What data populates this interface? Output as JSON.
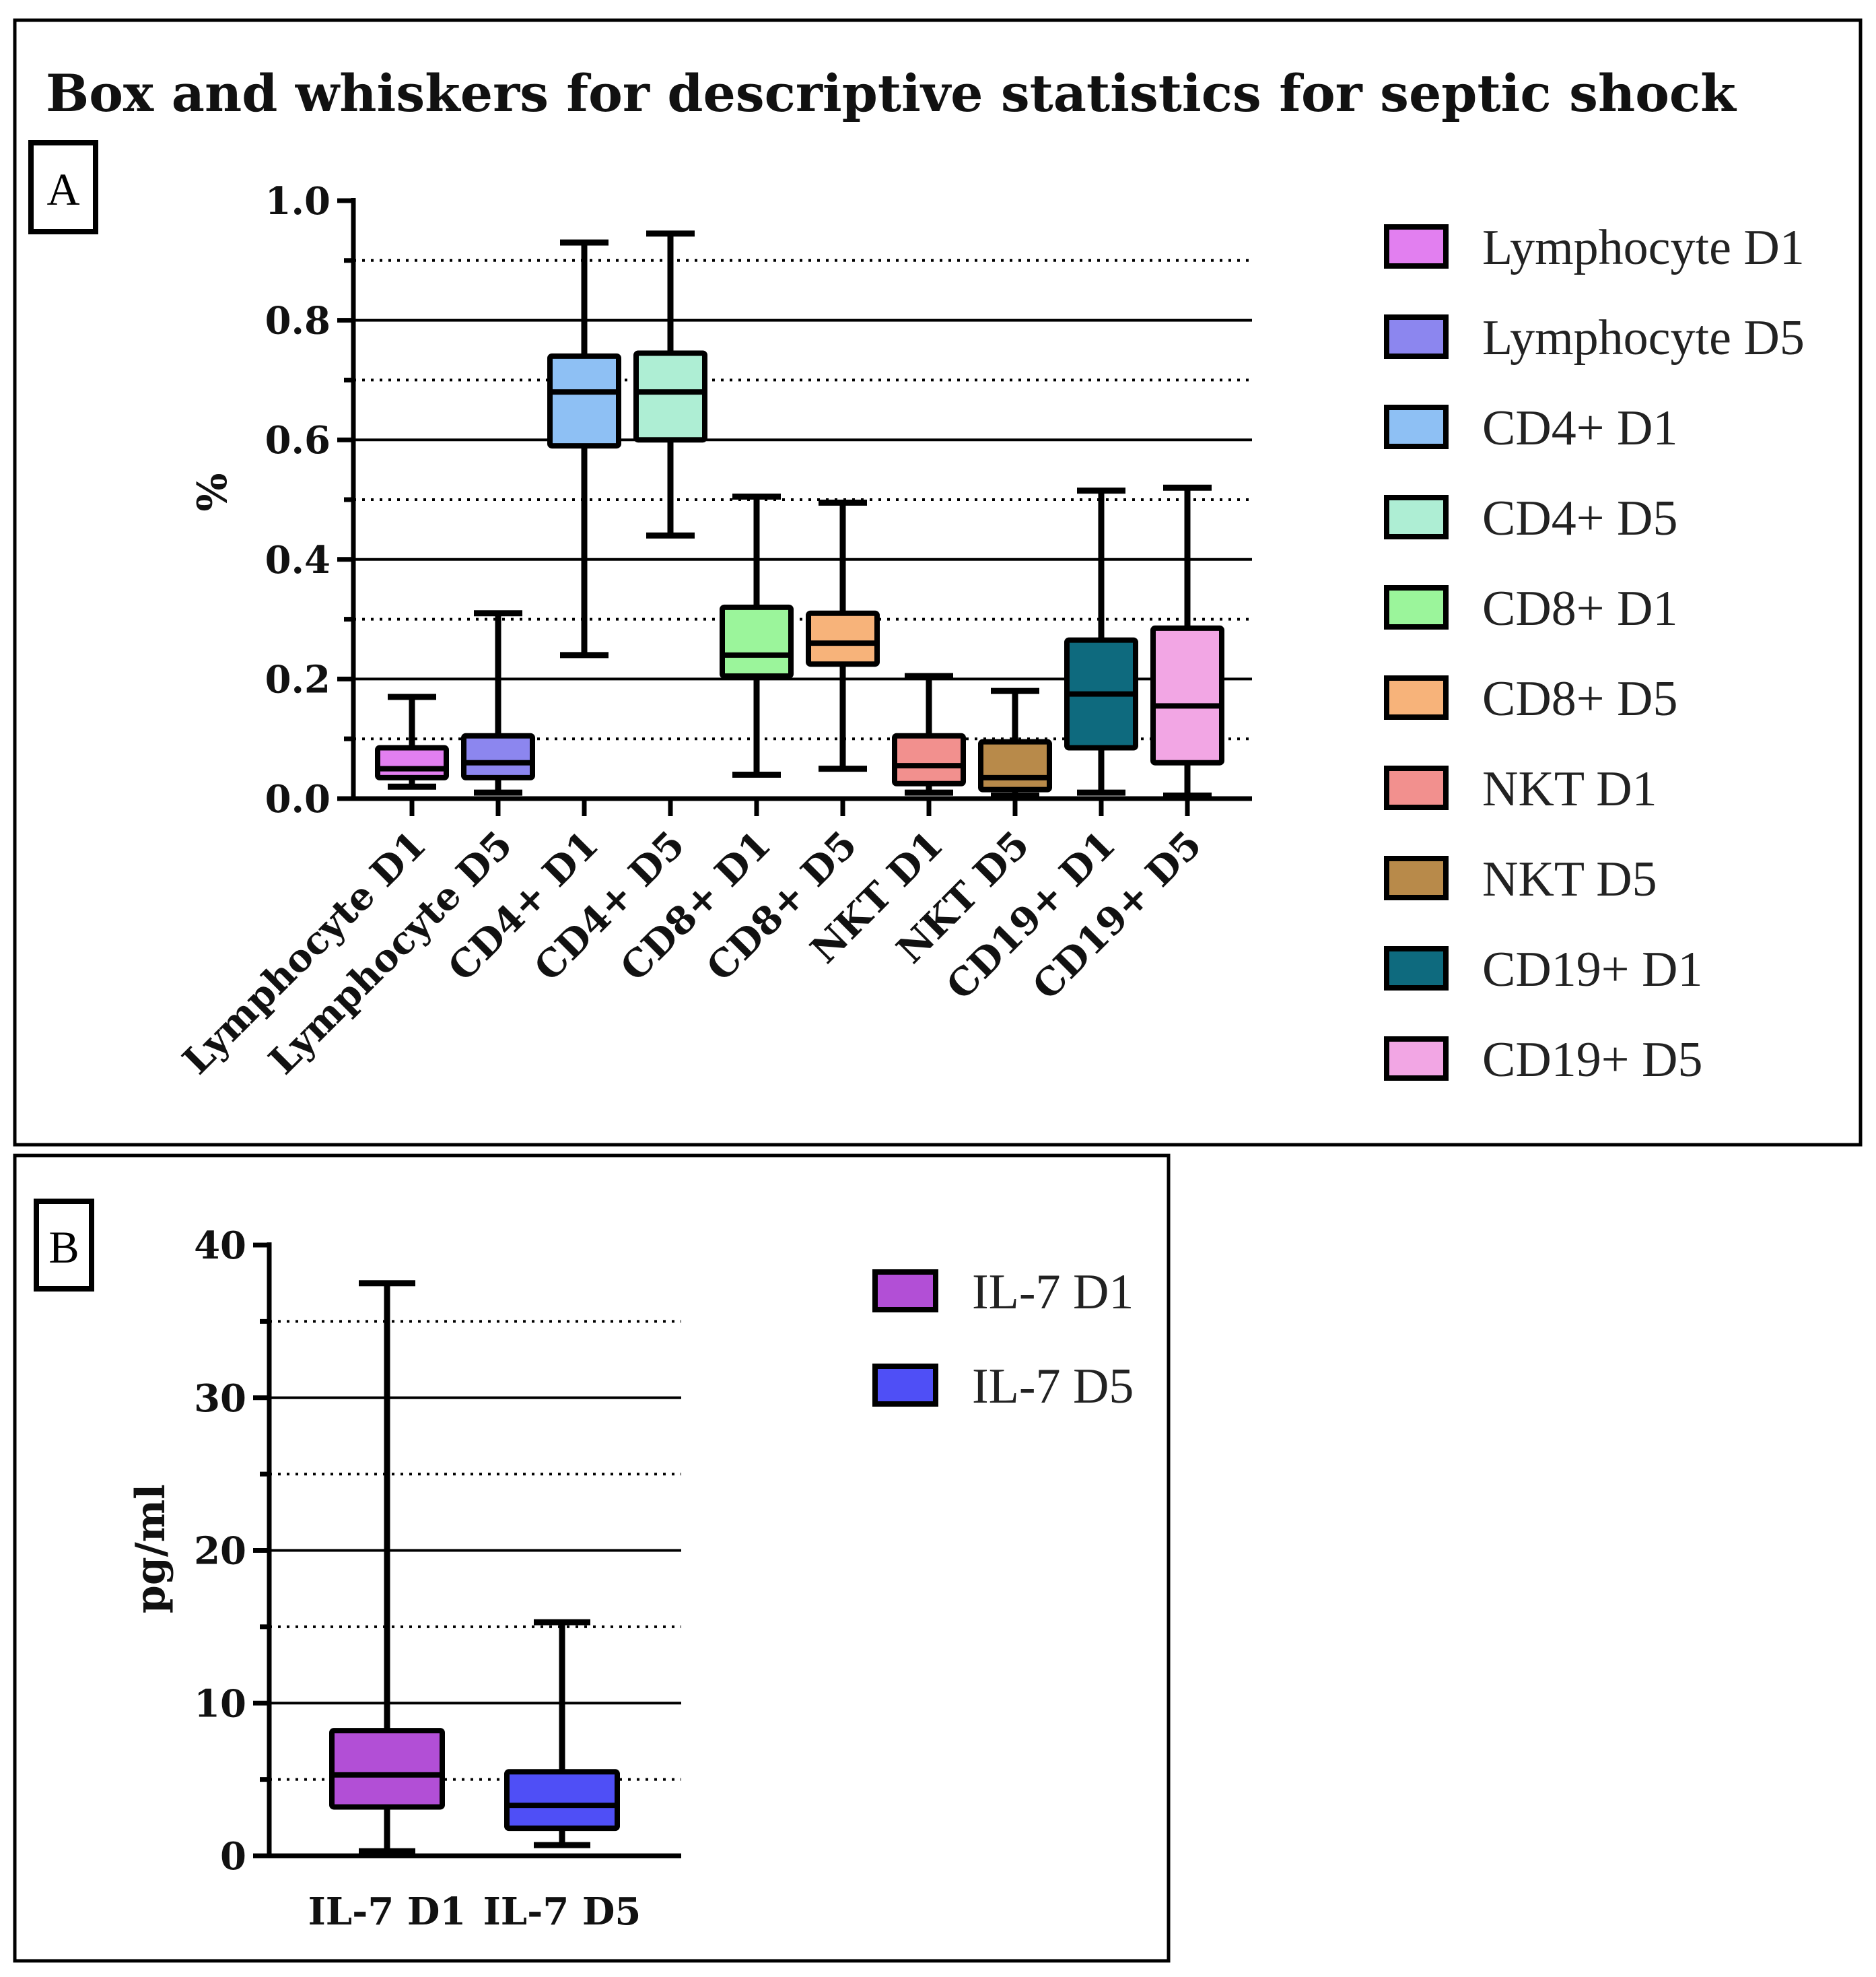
{
  "title": "Box and whiskers for descriptive statistics for septic shock",
  "chart_data": [
    {
      "panel": "A",
      "type": "box",
      "title": "Box and whiskers for descriptive statistics for septic shock",
      "ylabel": "%",
      "xlabel": "",
      "ylim": [
        0,
        1.0
      ],
      "yticks": [
        "0.0",
        "0.2",
        "0.4",
        "0.6",
        "0.8",
        "1.0"
      ],
      "tick_values": [
        0,
        0.2,
        0.4,
        0.6,
        0.8,
        1.0
      ],
      "solid_grid": [
        0.2,
        0.4,
        0.6,
        0.8
      ],
      "dotted_grid": [
        0.1,
        0.3,
        0.5,
        0.7,
        0.9
      ],
      "minor_ticks": [
        0.1,
        0.3,
        0.5,
        0.7,
        0.9
      ],
      "legend_position": "right",
      "series": [
        {
          "name": "Lymphocyte D1",
          "color": "#e27ff0",
          "min": 0.02,
          "q1": 0.035,
          "median": 0.05,
          "q3": 0.085,
          "max": 0.17
        },
        {
          "name": "Lymphocyte D5",
          "color": "#8c86ef",
          "min": 0.01,
          "q1": 0.035,
          "median": 0.06,
          "q3": 0.105,
          "max": 0.31
        },
        {
          "name": "CD4+ D1",
          "color": "#8ec0f4",
          "min": 0.24,
          "q1": 0.59,
          "median": 0.68,
          "q3": 0.74,
          "max": 0.93
        },
        {
          "name": "CD4+ D5",
          "color": "#aeeed4",
          "min": 0.44,
          "q1": 0.6,
          "median": 0.68,
          "q3": 0.745,
          "max": 0.945
        },
        {
          "name": "CD8+ D1",
          "color": "#9bf59b",
          "min": 0.04,
          "q1": 0.205,
          "median": 0.24,
          "q3": 0.32,
          "max": 0.505
        },
        {
          "name": "CD8+ D5",
          "color": "#f7b37a",
          "min": 0.05,
          "q1": 0.225,
          "median": 0.26,
          "q3": 0.31,
          "max": 0.495
        },
        {
          "name": "NKT D1",
          "color": "#f2908e",
          "min": 0.01,
          "q1": 0.025,
          "median": 0.055,
          "q3": 0.105,
          "max": 0.205
        },
        {
          "name": "NKT D5",
          "color": "#b88a4a",
          "min": 0.005,
          "q1": 0.015,
          "median": 0.035,
          "q3": 0.095,
          "max": 0.18
        },
        {
          "name": "CD19+ D1",
          "color": "#0e6a7e",
          "min": 0.01,
          "q1": 0.085,
          "median": 0.175,
          "q3": 0.265,
          "max": 0.515
        },
        {
          "name": "CD19+ D5",
          "color": "#f2a6e4",
          "min": 0.005,
          "q1": 0.06,
          "median": 0.155,
          "q3": 0.285,
          "max": 0.52
        }
      ]
    },
    {
      "panel": "B",
      "type": "box",
      "title": "",
      "ylabel": "pg/ml",
      "xlabel": "",
      "ylim": [
        0,
        40
      ],
      "yticks": [
        "0",
        "10",
        "20",
        "30",
        "40"
      ],
      "tick_values": [
        0,
        10,
        20,
        30,
        40
      ],
      "solid_grid": [
        10,
        20,
        30
      ],
      "dotted_grid": [
        5,
        15,
        25,
        35
      ],
      "minor_ticks": [
        5,
        15,
        25,
        35
      ],
      "legend_position": "right",
      "series": [
        {
          "name": "IL-7 D1",
          "color": "#b24fd6",
          "min": 0.3,
          "q1": 3.2,
          "median": 5.3,
          "q3": 8.2,
          "max": 37.5
        },
        {
          "name": "IL-7 D5",
          "color": "#4f4ff6",
          "min": 0.7,
          "q1": 1.8,
          "median": 3.3,
          "q3": 5.5,
          "max": 15.3
        }
      ]
    }
  ]
}
